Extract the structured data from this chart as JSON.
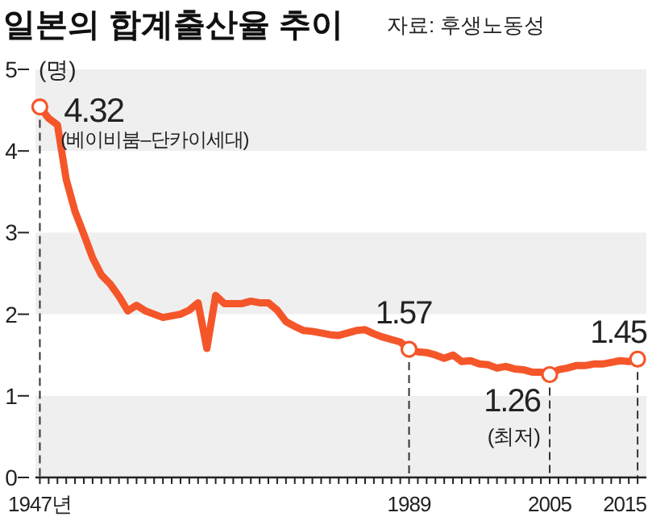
{
  "chart_data": {
    "type": "line",
    "title": "일본의 합계출산율 추이",
    "ylabel": "(명)",
    "annotations": [
      "자료: 후생노동성",
      {
        "text": "4.32",
        "x": 1949,
        "y": 4.32
      },
      {
        "text": "(베이비붐–단카이세대)",
        "x": 1949,
        "y": 4.32
      },
      {
        "text": "1.57",
        "x": 1989,
        "y": 1.57
      },
      {
        "text": "1.26",
        "x": 2005,
        "y": 1.26
      },
      {
        "text": "(최저)",
        "x": 2005,
        "y": 1.26
      },
      {
        "text": "1.45",
        "x": 2015,
        "y": 1.45
      }
    ],
    "x": [
      1947,
      1948,
      1949,
      1950,
      1951,
      1952,
      1953,
      1954,
      1955,
      1956,
      1957,
      1958,
      1959,
      1960,
      1961,
      1962,
      1963,
      1964,
      1965,
      1966,
      1967,
      1968,
      1969,
      1970,
      1971,
      1972,
      1973,
      1974,
      1975,
      1976,
      1977,
      1978,
      1979,
      1980,
      1981,
      1982,
      1983,
      1984,
      1985,
      1986,
      1987,
      1988,
      1989,
      1990,
      1991,
      1992,
      1993,
      1994,
      1995,
      1996,
      1997,
      1998,
      1999,
      2000,
      2001,
      2002,
      2003,
      2004,
      2005,
      2006,
      2007,
      2008,
      2009,
      2010,
      2011,
      2012,
      2013,
      2014,
      2015
    ],
    "series": [
      {
        "color": "#f4562a",
        "values": [
          4.54,
          4.4,
          4.32,
          3.65,
          3.26,
          2.98,
          2.69,
          2.48,
          2.37,
          2.22,
          2.04,
          2.11,
          2.04,
          2.0,
          1.96,
          1.98,
          2.0,
          2.05,
          2.14,
          1.58,
          2.23,
          2.13,
          2.13,
          2.13,
          2.16,
          2.14,
          2.14,
          2.05,
          1.91,
          1.85,
          1.8,
          1.79,
          1.77,
          1.75,
          1.74,
          1.77,
          1.8,
          1.81,
          1.76,
          1.72,
          1.69,
          1.66,
          1.57,
          1.54,
          1.53,
          1.5,
          1.46,
          1.5,
          1.42,
          1.43,
          1.39,
          1.38,
          1.34,
          1.36,
          1.33,
          1.32,
          1.29,
          1.29,
          1.26,
          1.32,
          1.34,
          1.37,
          1.37,
          1.39,
          1.39,
          1.41,
          1.43,
          1.42,
          1.45
        ]
      }
    ],
    "xlim": [
      1946.5,
      2016
    ],
    "xticks": [
      {
        "value": 1947,
        "label": "1947년"
      },
      {
        "value": 1948,
        "label": null
      },
      {
        "value": 1949,
        "label": null
      },
      {
        "value": 1950,
        "label": null
      },
      {
        "value": 1951,
        "label": null
      },
      {
        "value": 1952,
        "label": null
      },
      {
        "value": 1953,
        "label": null
      },
      {
        "value": 1954,
        "label": null
      },
      {
        "value": 1955,
        "label": null
      },
      {
        "value": 1956,
        "label": null
      },
      {
        "value": 1957,
        "label": null
      },
      {
        "value": 1958,
        "label": null
      },
      {
        "value": 1959,
        "label": null
      },
      {
        "value": 1960,
        "label": null
      },
      {
        "value": 1961,
        "label": null
      },
      {
        "value": 1962,
        "label": null
      },
      {
        "value": 1963,
        "label": null
      },
      {
        "value": 1964,
        "label": null
      },
      {
        "value": 1965,
        "label": null
      },
      {
        "value": 1966,
        "label": null
      },
      {
        "value": 1967,
        "label": null
      },
      {
        "value": 1968,
        "label": null
      },
      {
        "value": 1969,
        "label": null
      },
      {
        "value": 1970,
        "label": null
      },
      {
        "value": 1971,
        "label": null
      },
      {
        "value": 1972,
        "label": null
      },
      {
        "value": 1973,
        "label": null
      },
      {
        "value": 1974,
        "label": null
      },
      {
        "value": 1975,
        "label": null
      },
      {
        "value": 1976,
        "label": null
      },
      {
        "value": 1977,
        "label": null
      },
      {
        "value": 1978,
        "label": null
      },
      {
        "value": 1979,
        "label": null
      },
      {
        "value": 1980,
        "label": null
      },
      {
        "value": 1981,
        "label": null
      },
      {
        "value": 1982,
        "label": null
      },
      {
        "value": 1983,
        "label": null
      },
      {
        "value": 1984,
        "label": null
      },
      {
        "value": 1985,
        "label": null
      },
      {
        "value": 1986,
        "label": null
      },
      {
        "value": 1987,
        "label": null
      },
      {
        "value": 1988,
        "label": null
      },
      1989,
      {
        "value": 1990,
        "label": null
      },
      {
        "value": 1991,
        "label": null
      },
      {
        "value": 1992,
        "label": null
      },
      {
        "value": 1993,
        "label": null
      },
      {
        "value": 1994,
        "label": null
      },
      {
        "value": 1995,
        "label": null
      },
      {
        "value": 1996,
        "label": null
      },
      {
        "value": 1997,
        "label": null
      },
      {
        "value": 1998,
        "label": null
      },
      {
        "value": 1999,
        "label": null
      },
      {
        "value": 2000,
        "label": null
      },
      {
        "value": 2001,
        "label": null
      },
      {
        "value": 2002,
        "label": null
      },
      {
        "value": 2003,
        "label": null
      },
      {
        "value": 2004,
        "label": null
      },
      2005,
      {
        "value": 2006,
        "label": null
      },
      {
        "value": 2007,
        "label": null
      },
      {
        "value": 2008,
        "label": null
      },
      {
        "value": 2009,
        "label": null
      },
      {
        "value": 2010,
        "label": null
      },
      {
        "value": 2011,
        "label": null
      },
      {
        "value": 2012,
        "label": null
      },
      {
        "value": 2013,
        "label": null
      },
      {
        "value": 2014,
        "label": null
      },
      2015
    ],
    "ylim": [
      0,
      5
    ],
    "yticks": [
      0,
      1,
      2,
      3,
      4,
      5
    ],
    "bands": [
      {
        "axis": "y",
        "from": 0,
        "to": 1,
        "color": "#efefef"
      },
      {
        "axis": "y",
        "from": 2,
        "to": 3,
        "color": "#efefef"
      },
      {
        "axis": "y",
        "from": 4,
        "to": 5,
        "color": "#efefef"
      }
    ],
    "ref_lines": [
      {
        "axis": "x",
        "value": 1947,
        "line_style": "dashed"
      },
      {
        "axis": "x",
        "value": 1989,
        "line_style": "dashed"
      },
      {
        "axis": "x",
        "value": 2005,
        "line_style": "dashed"
      },
      {
        "axis": "x",
        "value": 2015,
        "line_style": "dashed"
      }
    ]
  }
}
